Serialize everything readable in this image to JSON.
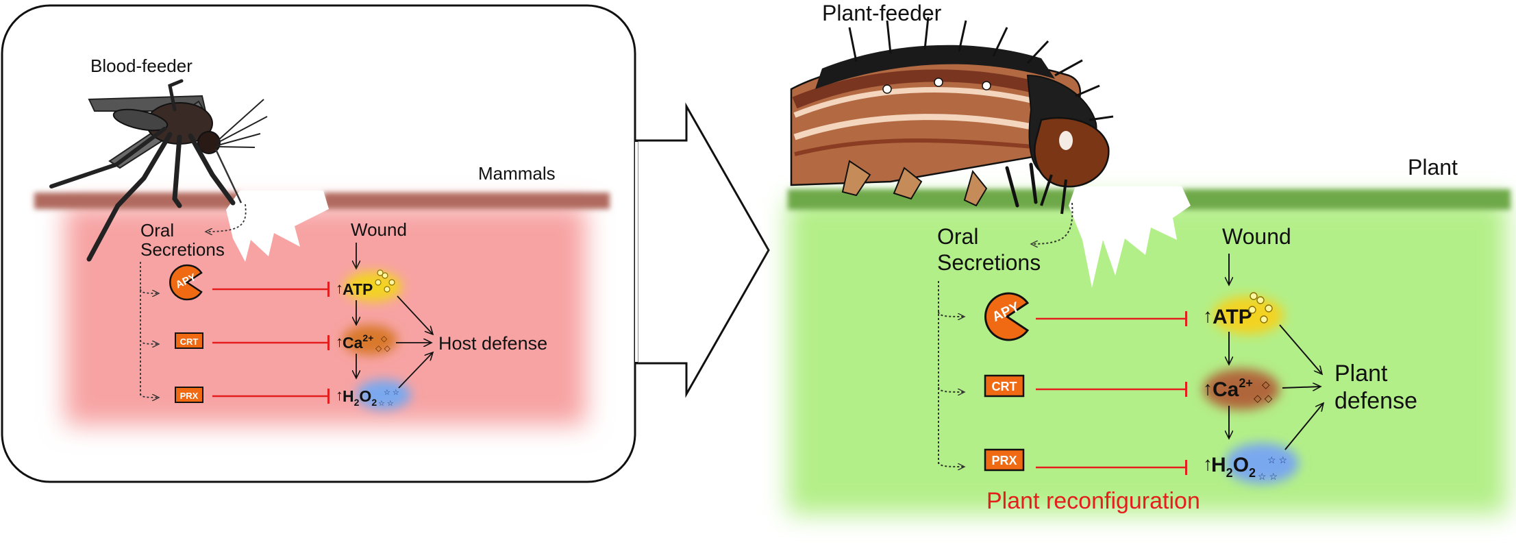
{
  "left_panel": {
    "organism": "Blood-feeder",
    "host": "Mammals",
    "oral_secretions": [
      "Oral",
      "Secretions"
    ],
    "wound": "Wound",
    "effectors": {
      "apy": "APY",
      "crt": "CRT",
      "prx": "PRX"
    },
    "signals": {
      "atp": "ATP",
      "ca": "Ca",
      "ca_sup": "2+",
      "h2o2_h": "H",
      "h2o2_sub": "2",
      "h2o2_o": "O",
      "h2o2_sub2": "2"
    },
    "defense": "Host defense"
  },
  "right_panel": {
    "organism": "Plant-feeder",
    "host": "Plant",
    "oral_secretions": [
      "Oral",
      "Secretions"
    ],
    "wound": "Wound",
    "effectors": {
      "apy": "APY",
      "crt": "CRT",
      "prx": "PRX"
    },
    "signals": {
      "atp": "ATP",
      "ca": "Ca",
      "ca_sup": "2+",
      "h2o2_h": "H",
      "h2o2_sub": "2",
      "h2o2_o": "O",
      "h2o2_sub2": "2"
    },
    "defense": [
      "Plant",
      "defense"
    ],
    "caption": "Plant reconfiguration"
  },
  "colors": {
    "mammal_tissue": "#f7a3a3",
    "mammal_surface": "#b06a5e",
    "plant_tissue": "#b3ef88",
    "plant_surface": "#6ea94a",
    "inhibition": "#e41e1e",
    "effector": "#f06a14",
    "atp_glow": "#f3d321",
    "ca_glow": "#d8782a",
    "h2o2_glow": "#7aa8ee"
  }
}
